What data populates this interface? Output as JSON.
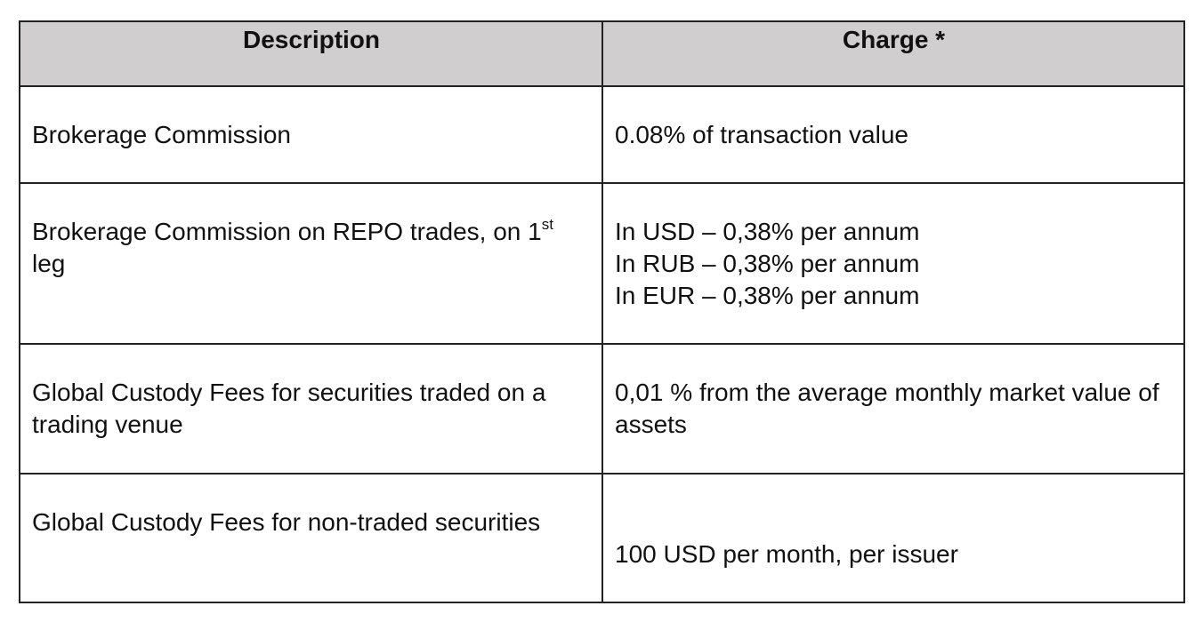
{
  "table": {
    "header": [
      "Description",
      "Charge *"
    ],
    "rows": [
      {
        "description": {
          "text": "Brokerage Commission"
        },
        "charge": [
          "0.08% of transaction value"
        ]
      },
      {
        "description": {
          "text": "Brokerage Commission on REPO trades, on 1",
          "sup": "st",
          "after": " leg"
        },
        "charge": [
          "In USD – 0,38% per annum",
          "In RUB – 0,38% per annum",
          "In EUR – 0,38% per annum"
        ]
      },
      {
        "description": {
          "text": "Global Custody Fees for securities traded on a trading venue"
        },
        "charge": [
          "0,01 % from the average monthly market value of assets"
        ]
      },
      {
        "description": {
          "text": "Global Custody Fees for non-traded securities"
        },
        "charge": [
          "100 USD per month, per issuer"
        ]
      }
    ]
  }
}
